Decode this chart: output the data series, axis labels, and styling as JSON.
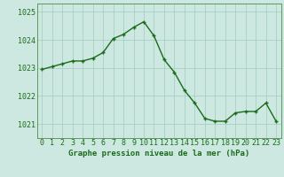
{
  "x": [
    0,
    1,
    2,
    3,
    4,
    5,
    6,
    7,
    8,
    9,
    10,
    11,
    12,
    13,
    14,
    15,
    16,
    17,
    18,
    19,
    20,
    21,
    22,
    23
  ],
  "y": [
    1022.95,
    1023.05,
    1023.15,
    1023.25,
    1023.25,
    1023.35,
    1023.55,
    1024.05,
    1024.2,
    1024.45,
    1024.65,
    1024.15,
    1023.3,
    1022.85,
    1022.2,
    1021.75,
    1021.2,
    1021.1,
    1021.1,
    1021.4,
    1021.45,
    1021.45,
    1021.75,
    1021.1
  ],
  "line_color": "#1a6b1a",
  "marker_color": "#1a6b1a",
  "bg_color": "#cde8e0",
  "grid_color": "#a8cfc4",
  "axis_color": "#1a6b1a",
  "xlabel": "Graphe pression niveau de la mer (hPa)",
  "ylim_min": 1020.5,
  "ylim_max": 1025.3,
  "ytick_values": [
    1021,
    1022,
    1023,
    1024,
    1025
  ],
  "border_color": "#5a9a5a",
  "tick_fontsize": 6.0,
  "xlabel_fontsize": 6.5
}
